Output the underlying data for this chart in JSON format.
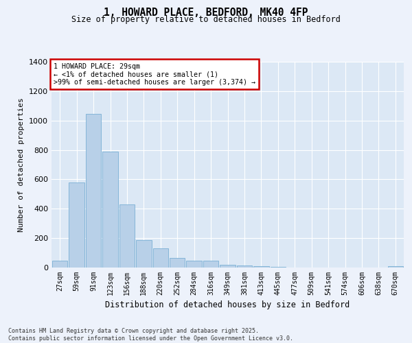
{
  "title1": "1, HOWARD PLACE, BEDFORD, MK40 4FP",
  "title2": "Size of property relative to detached houses in Bedford",
  "xlabel": "Distribution of detached houses by size in Bedford",
  "ylabel": "Number of detached properties",
  "categories": [
    "27sqm",
    "59sqm",
    "91sqm",
    "123sqm",
    "156sqm",
    "188sqm",
    "220sqm",
    "252sqm",
    "284sqm",
    "316sqm",
    "349sqm",
    "381sqm",
    "413sqm",
    "445sqm",
    "477sqm",
    "509sqm",
    "541sqm",
    "574sqm",
    "606sqm",
    "638sqm",
    "670sqm"
  ],
  "values": [
    45,
    580,
    1045,
    790,
    430,
    185,
    130,
    65,
    45,
    45,
    20,
    15,
    10,
    5,
    0,
    0,
    0,
    0,
    0,
    0,
    10
  ],
  "bar_color": "#b8d0e8",
  "bar_edge_color": "#7aafd4",
  "ylim": [
    0,
    1400
  ],
  "yticks": [
    0,
    200,
    400,
    600,
    800,
    1000,
    1200,
    1400
  ],
  "annotation_line1": "1 HOWARD PLACE: 29sqm",
  "annotation_line2": "← <1% of detached houses are smaller (1)",
  "annotation_line3": ">99% of semi-detached houses are larger (3,374) →",
  "footnote1": "Contains HM Land Registry data © Crown copyright and database right 2025.",
  "footnote2": "Contains public sector information licensed under the Open Government Licence v3.0.",
  "background_color": "#edf2fb",
  "plot_bg_color": "#dce8f5",
  "grid_color": "#ffffff",
  "annotation_box_color": "#ffffff",
  "annotation_box_edge": "#cc0000"
}
